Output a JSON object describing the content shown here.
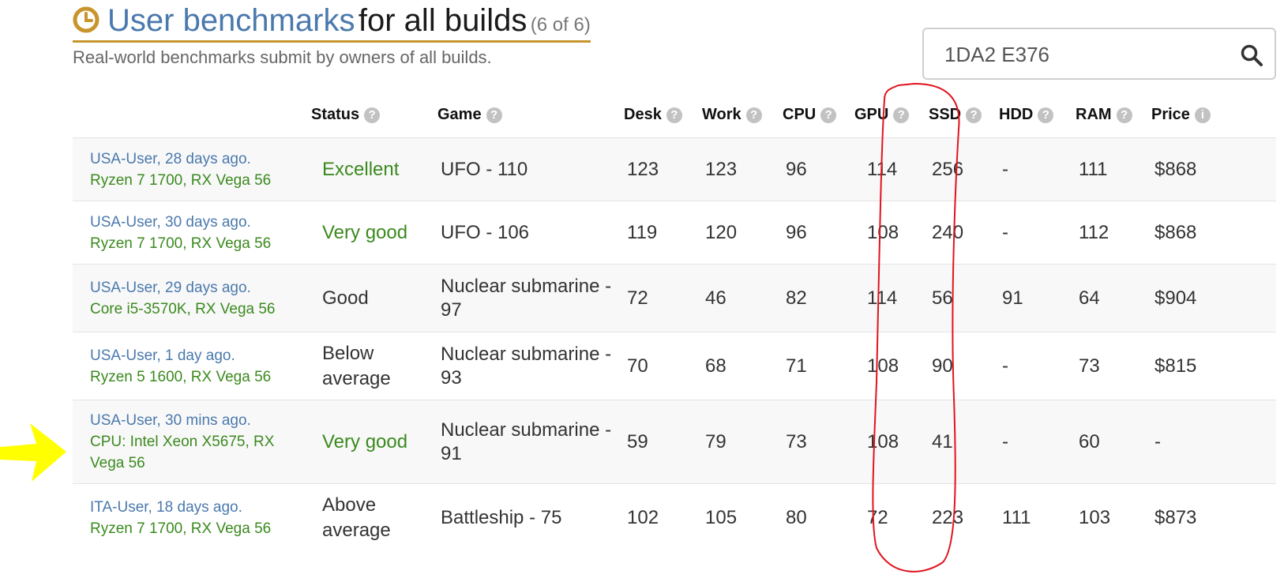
{
  "header": {
    "title_blue": "User benchmarks",
    "title_black": "for all builds",
    "count": "(6 of 6)",
    "subtitle": "Real-world benchmarks submit by owners of all builds."
  },
  "search": {
    "value": "1DA2 E376",
    "icon": "search-icon"
  },
  "icons": {
    "title": "clock-icon",
    "help": "?",
    "info": "i"
  },
  "columns": [
    "Status",
    "Game",
    "Desk",
    "Work",
    "CPU",
    "GPU",
    "SSD",
    "HDD",
    "RAM",
    "Price"
  ],
  "rows": [
    {
      "user": "USA-User, 28 days ago.",
      "build": "Ryzen 7 1700, RX Vega 56",
      "status": "Excellent",
      "game": "UFO - 110",
      "desk": "123",
      "work": "123",
      "cpu": "96",
      "gpu": "114",
      "ssd": "256",
      "hdd": "-",
      "ram": "111",
      "price": "$868"
    },
    {
      "user": "USA-User, 30 days ago.",
      "build": "Ryzen 7 1700, RX Vega 56",
      "status": "Very good",
      "game": "UFO - 106",
      "desk": "119",
      "work": "120",
      "cpu": "96",
      "gpu": "108",
      "ssd": "240",
      "hdd": "-",
      "ram": "112",
      "price": "$868"
    },
    {
      "user": "USA-User, 29 days ago.",
      "build": "Core i5-3570K, RX Vega 56",
      "status": "Good",
      "game": "Nuclear submarine - 97",
      "desk": "72",
      "work": "46",
      "cpu": "82",
      "gpu": "114",
      "ssd": "56",
      "hdd": "91",
      "ram": "64",
      "price": "$904"
    },
    {
      "user": "USA-User, 1 day ago.",
      "build": "Ryzen 5 1600, RX Vega 56",
      "status": "Below average",
      "game": "Nuclear submarine - 93",
      "desk": "70",
      "work": "68",
      "cpu": "71",
      "gpu": "108",
      "ssd": "90",
      "hdd": "-",
      "ram": "73",
      "price": "$815"
    },
    {
      "user": "USA-User, 30 mins ago.",
      "build": "CPU: Intel Xeon X5675, RX Vega 56",
      "status": "Very good",
      "game": "Nuclear submarine - 91",
      "desk": "59",
      "work": "79",
      "cpu": "73",
      "gpu": "108",
      "ssd": "41",
      "hdd": "-",
      "ram": "60",
      "price": "-"
    },
    {
      "user": "ITA-User, 18 days ago.",
      "build": "Ryzen 7 1700, RX Vega 56",
      "status": "Above average",
      "game": "Battleship - 75",
      "desk": "102",
      "work": "105",
      "cpu": "80",
      "gpu": "72",
      "ssd": "223",
      "hdd": "111",
      "ram": "103",
      "price": "$873"
    }
  ],
  "colors": {
    "link_blue": "#4a79ad",
    "build_green": "#3b8a1f",
    "title_underline": "#c8952c",
    "annotation_red": "#e0141e",
    "annotation_yellow": "#ffff00"
  }
}
